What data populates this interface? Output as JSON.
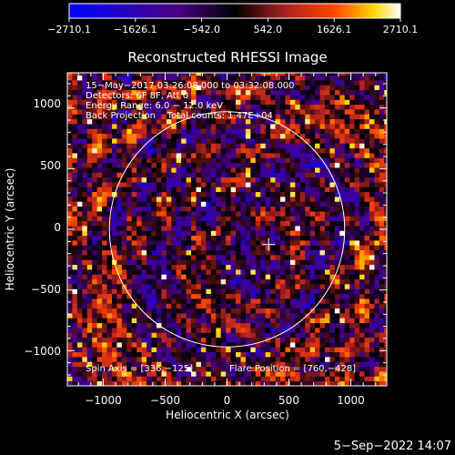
{
  "chart_data": {
    "type": "heatmap",
    "title": "Reconstructed RHESSI Image",
    "xlabel": "Heliocentric X (arcsec)",
    "ylabel": "Heliocentric Y (arcsec)",
    "xlim": [
      -1290,
      1290
    ],
    "ylim": [
      -1290,
      1290
    ],
    "xticks": [
      -1000,
      -500,
      0,
      500,
      1000
    ],
    "yticks": [
      -1000,
      -500,
      0,
      500,
      1000
    ],
    "xtick_labels": [
      "−1000",
      "−500",
      "0",
      "500",
      "1000"
    ],
    "ytick_labels": [
      "−1000",
      "−500",
      "0",
      "500",
      "1000"
    ],
    "colorbar": {
      "min": -2710.1,
      "max": 2710.1,
      "tick_labels": [
        "−2710.1",
        "−1626.1",
        "−542.0",
        "542.0",
        "1626.1",
        "2710.1"
      ],
      "colors": [
        "#0000ff",
        "#4b0082",
        "#000000",
        "#b22222",
        "#ff4500",
        "#ffd700",
        "#ffffff"
      ]
    },
    "annotations": [
      "15−May−2017 03:26:08.000 to 03:32:08.000",
      "Detectors: 6F 8F, Att 0",
      "Energy Range: 6.0 − 12.0 keV",
      "Back Projection    Total counts: 1.47E+04"
    ],
    "spin_axis_label": "Spin Axis = [336,−125]",
    "flare_position_label": "Flare Position = [760,−428]",
    "solar_limb_radius": 950,
    "marker": {
      "x": 336,
      "y": -125
    },
    "pixel_size_arcsec": 40
  },
  "footer": {
    "date": "5−Sep−2022 14:07"
  }
}
